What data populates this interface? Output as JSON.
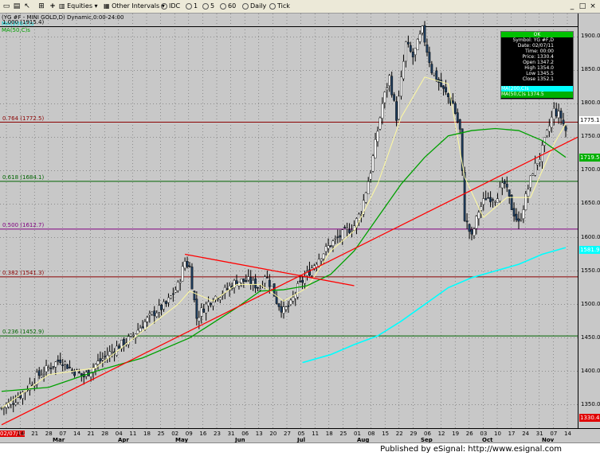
{
  "toolbar": {
    "equities": "Equities",
    "other_intervals": "Other Intervals",
    "idc": "IDC",
    "i1": "1",
    "i5": "5",
    "i60": "60",
    "daily": "Daily",
    "tick": "Tick"
  },
  "chart_title": "(YG #F - MINI GOLD,D) Dynamic,0:00-24:00",
  "ma_labels": {
    "ma1": "MA(200,C)s",
    "ma2": "MA(50,C)s"
  },
  "fib_levels": [
    {
      "label": "1.000 (1915.4)",
      "price": 1915.4,
      "color": "#000000"
    },
    {
      "label": "0.764 (1772.5)",
      "price": 1772.5,
      "color": "#8b0000"
    },
    {
      "label": "0.618 (1684.1)",
      "price": 1684.1,
      "color": "#006400"
    },
    {
      "label": "0.500 (1612.7)",
      "price": 1612.7,
      "color": "#800080"
    },
    {
      "label": "0.382 (1541.3)",
      "price": 1541.3,
      "color": "#8b0000"
    },
    {
      "label": "0.236 (1452.9)",
      "price": 1452.9,
      "color": "#006400"
    }
  ],
  "price_ticks": [
    "1900.0",
    "1850.0",
    "1800.0",
    "1750.0",
    "1700.0",
    "1650.0",
    "1600.0",
    "1550.0",
    "1500.0",
    "1450.0",
    "1400.0",
    "1350.0"
  ],
  "price_tags": [
    {
      "text": "1775.1",
      "price": 1775.1,
      "bg": "#ffffff",
      "fg": "#000000"
    },
    {
      "text": "1719.5",
      "price": 1719.5,
      "bg": "#00b000",
      "fg": "#ffffff"
    },
    {
      "text": "1581.9",
      "price": 1581.9,
      "bg": "#00ffff",
      "fg": "#ffffff"
    },
    {
      "text": "1330.4",
      "price": 1330.4,
      "bg": "#e00000",
      "fg": "#ffffff"
    }
  ],
  "date_labels": [
    "02/07/11",
    "14",
    "21",
    "28",
    "07",
    "14",
    "21",
    "28",
    "04",
    "11",
    "18",
    "25",
    "02",
    "09",
    "16",
    "23",
    "31",
    "06",
    "13",
    "20",
    "27",
    "05",
    "11",
    "18",
    "25",
    "01",
    "08",
    "15",
    "22",
    "29",
    "06",
    "12",
    "19",
    "26",
    "03",
    "10",
    "17",
    "24",
    "31",
    "07",
    "14"
  ],
  "month_labels": [
    "Mar",
    "Apr",
    "May",
    "Jun",
    "Jul",
    "Aug",
    "Sep",
    "Oct",
    "Nov"
  ],
  "data_window": {
    "header": "OK",
    "rows": [
      "Symbol: YG #F,D",
      "Date: 02/07/11",
      "Time: 00:00",
      "Price: 1330.4",
      "Open 1347.2",
      "High 1354.0",
      "Low 1345.5",
      "Close 1352.1"
    ],
    "ma1": "MA(200,C)s",
    "ma2": "MA(50,C)s 1374.5"
  },
  "footer": "Published by eSignal: http://www.esignal.com",
  "chart_data": {
    "type": "candlestick",
    "title": "(YG #F - MINI GOLD,D) Dynamic,0:00-24:00",
    "ylim": [
      1315,
      1935
    ],
    "close_path": [
      [
        0,
        1345
      ],
      [
        5,
        1355
      ],
      [
        10,
        1372
      ],
      [
        15,
        1392
      ],
      [
        20,
        1405
      ],
      [
        25,
        1418
      ],
      [
        30,
        1402
      ],
      [
        35,
        1392
      ],
      [
        40,
        1410
      ],
      [
        45,
        1425
      ],
      [
        50,
        1438
      ],
      [
        55,
        1450
      ],
      [
        60,
        1470
      ],
      [
        65,
        1488
      ],
      [
        70,
        1500
      ],
      [
        75,
        1528
      ],
      [
        78,
        1565
      ],
      [
        80,
        1555
      ],
      [
        83,
        1480
      ],
      [
        86,
        1495
      ],
      [
        90,
        1510
      ],
      [
        95,
        1520
      ],
      [
        100,
        1535
      ],
      [
        105,
        1535
      ],
      [
        110,
        1525
      ],
      [
        112,
        1545
      ],
      [
        115,
        1525
      ],
      [
        117,
        1505
      ],
      [
        120,
        1490
      ],
      [
        123,
        1500
      ],
      [
        126,
        1525
      ],
      [
        130,
        1545
      ],
      [
        135,
        1570
      ],
      [
        140,
        1590
      ],
      [
        145,
        1605
      ],
      [
        150,
        1618
      ],
      [
        153,
        1640
      ],
      [
        157,
        1700
      ],
      [
        162,
        1800
      ],
      [
        165,
        1840
      ],
      [
        168,
        1780
      ],
      [
        172,
        1890
      ],
      [
        175,
        1870
      ],
      [
        179,
        1910
      ],
      [
        183,
        1850
      ],
      [
        188,
        1820
      ],
      [
        192,
        1800
      ],
      [
        195,
        1760
      ],
      [
        197,
        1630
      ],
      [
        200,
        1600
      ],
      [
        203,
        1640
      ],
      [
        206,
        1660
      ],
      [
        210,
        1660
      ],
      [
        214,
        1680
      ],
      [
        217,
        1645
      ],
      [
        220,
        1620
      ],
      [
        223,
        1660
      ],
      [
        226,
        1700
      ],
      [
        229,
        1720
      ],
      [
        232,
        1755
      ],
      [
        235,
        1790
      ],
      [
        238,
        1780
      ],
      [
        240,
        1760
      ]
    ],
    "trendlines": [
      {
        "from": [
          0,
          1320
        ],
        "to": [
          245,
          1750
        ],
        "color": "#ff0000"
      },
      {
        "from": [
          78,
          1575
        ],
        "to": [
          150,
          1528
        ],
        "color": "#ff0000"
      }
    ],
    "ma50": [
      [
        0,
        1370
      ],
      [
        20,
        1376
      ],
      [
        40,
        1400
      ],
      [
        60,
        1420
      ],
      [
        80,
        1450
      ],
      [
        100,
        1495
      ],
      [
        110,
        1520
      ],
      [
        120,
        1522
      ],
      [
        130,
        1528
      ],
      [
        140,
        1545
      ],
      [
        150,
        1580
      ],
      [
        160,
        1630
      ],
      [
        170,
        1680
      ],
      [
        180,
        1720
      ],
      [
        190,
        1752
      ],
      [
        200,
        1760
      ],
      [
        210,
        1763
      ],
      [
        220,
        1760
      ],
      [
        230,
        1745
      ],
      [
        240,
        1720
      ]
    ],
    "ma200": [
      [
        128,
        1413
      ],
      [
        140,
        1425
      ],
      [
        150,
        1440
      ],
      [
        160,
        1453
      ],
      [
        170,
        1475
      ],
      [
        180,
        1500
      ],
      [
        190,
        1525
      ],
      [
        200,
        1540
      ],
      [
        210,
        1550
      ],
      [
        220,
        1560
      ],
      [
        230,
        1575
      ],
      [
        240,
        1585
      ]
    ],
    "ma_short": [
      [
        0,
        1345
      ],
      [
        20,
        1395
      ],
      [
        40,
        1405
      ],
      [
        60,
        1460
      ],
      [
        75,
        1500
      ],
      [
        80,
        1520
      ],
      [
        90,
        1505
      ],
      [
        100,
        1530
      ],
      [
        110,
        1530
      ],
      [
        120,
        1505
      ],
      [
        130,
        1525
      ],
      [
        140,
        1580
      ],
      [
        150,
        1610
      ],
      [
        160,
        1680
      ],
      [
        170,
        1780
      ],
      [
        180,
        1840
      ],
      [
        190,
        1830
      ],
      [
        197,
        1690
      ],
      [
        205,
        1630
      ],
      [
        215,
        1660
      ],
      [
        225,
        1660
      ],
      [
        235,
        1740
      ],
      [
        240,
        1770
      ]
    ]
  }
}
